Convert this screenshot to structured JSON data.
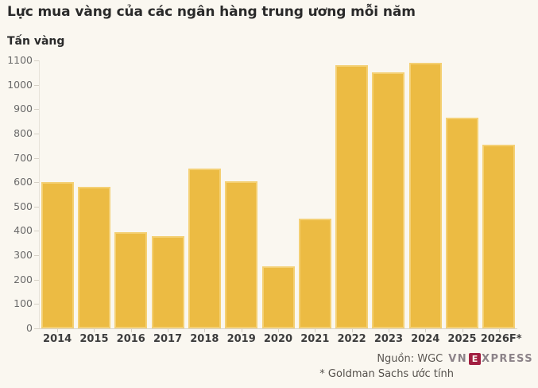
{
  "chart_data": {
    "type": "bar",
    "title": "Lực mua vàng của các ngân hàng trung ương mỗi năm",
    "ylabel": "Tấn vàng",
    "xlabel": "",
    "categories": [
      "2014",
      "2015",
      "2016",
      "2017",
      "2018",
      "2019",
      "2020",
      "2021",
      "2022",
      "2023",
      "2024",
      "2025",
      "2026F*"
    ],
    "values": [
      601,
      580,
      395,
      379,
      656,
      605,
      255,
      450,
      1082,
      1051,
      1089,
      865,
      755
    ],
    "ylim": [
      0,
      1100
    ],
    "ytick_step": 100,
    "grid": false,
    "legend": "none",
    "bar_color": "#ECBB43"
  },
  "footer": {
    "source_label": "Nguồn: WGC",
    "note": "* Goldman Sachs ước tính",
    "logo": {
      "prefix": "VN",
      "boxed": "E",
      "suffix": "XPRESS"
    }
  },
  "colors": {
    "background": "#FAF7F0",
    "bar": "#ECBB43",
    "logo_accent": "#A21F41",
    "logo_letters": "#8C8389"
  }
}
